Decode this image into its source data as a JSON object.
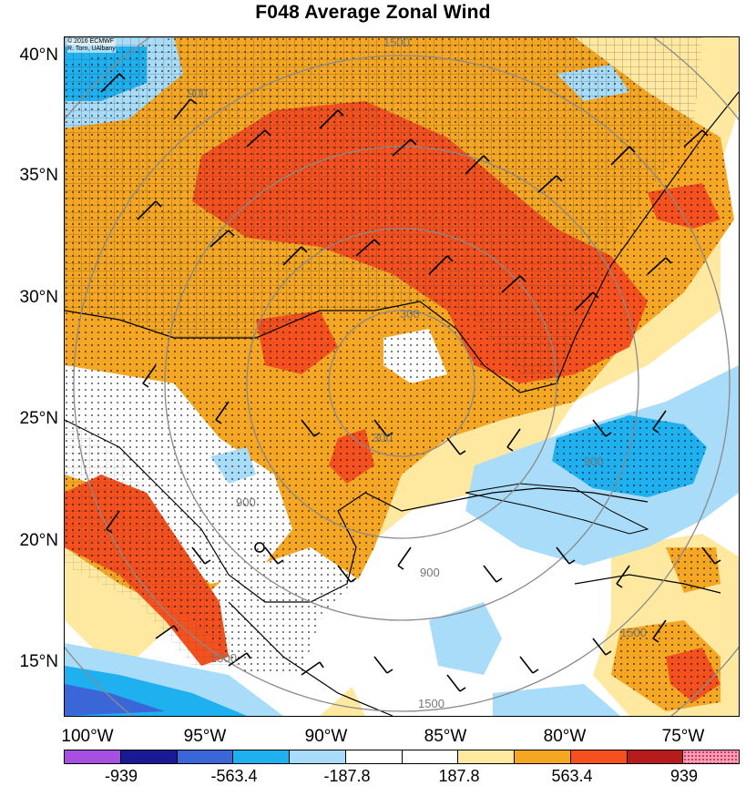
{
  "title": "F048 Average Zonal Wind",
  "credit": [
    "© 2016 ECMWF",
    "R. Torn, UAlbany"
  ],
  "lat_labels": [
    "40°N",
    "35°N",
    "30°N",
    "25°N",
    "20°N",
    "15°N"
  ],
  "lon_labels": [
    "100°W",
    "95°W",
    "90°W",
    "85°W",
    "80°W",
    "75°W"
  ],
  "colorbar": {
    "colors": [
      "#a64fe0",
      "#1a1a96",
      "#3a66d8",
      "#1fb0f0",
      "#a8dcf8",
      "#ffffff",
      "#ffffff",
      "#ffe8a0",
      "#f5a623",
      "#f4511e",
      "#b71c1c",
      "#ff9eb0"
    ],
    "tick_labels": [
      "-939",
      "-563.4",
      "-187.8",
      "187.8",
      "563.4",
      "939"
    ]
  },
  "contour_labels": [
    "300",
    "300",
    "900",
    "900",
    "1500",
    "1500",
    "1500",
    "900",
    "1500",
    "900"
  ]
}
